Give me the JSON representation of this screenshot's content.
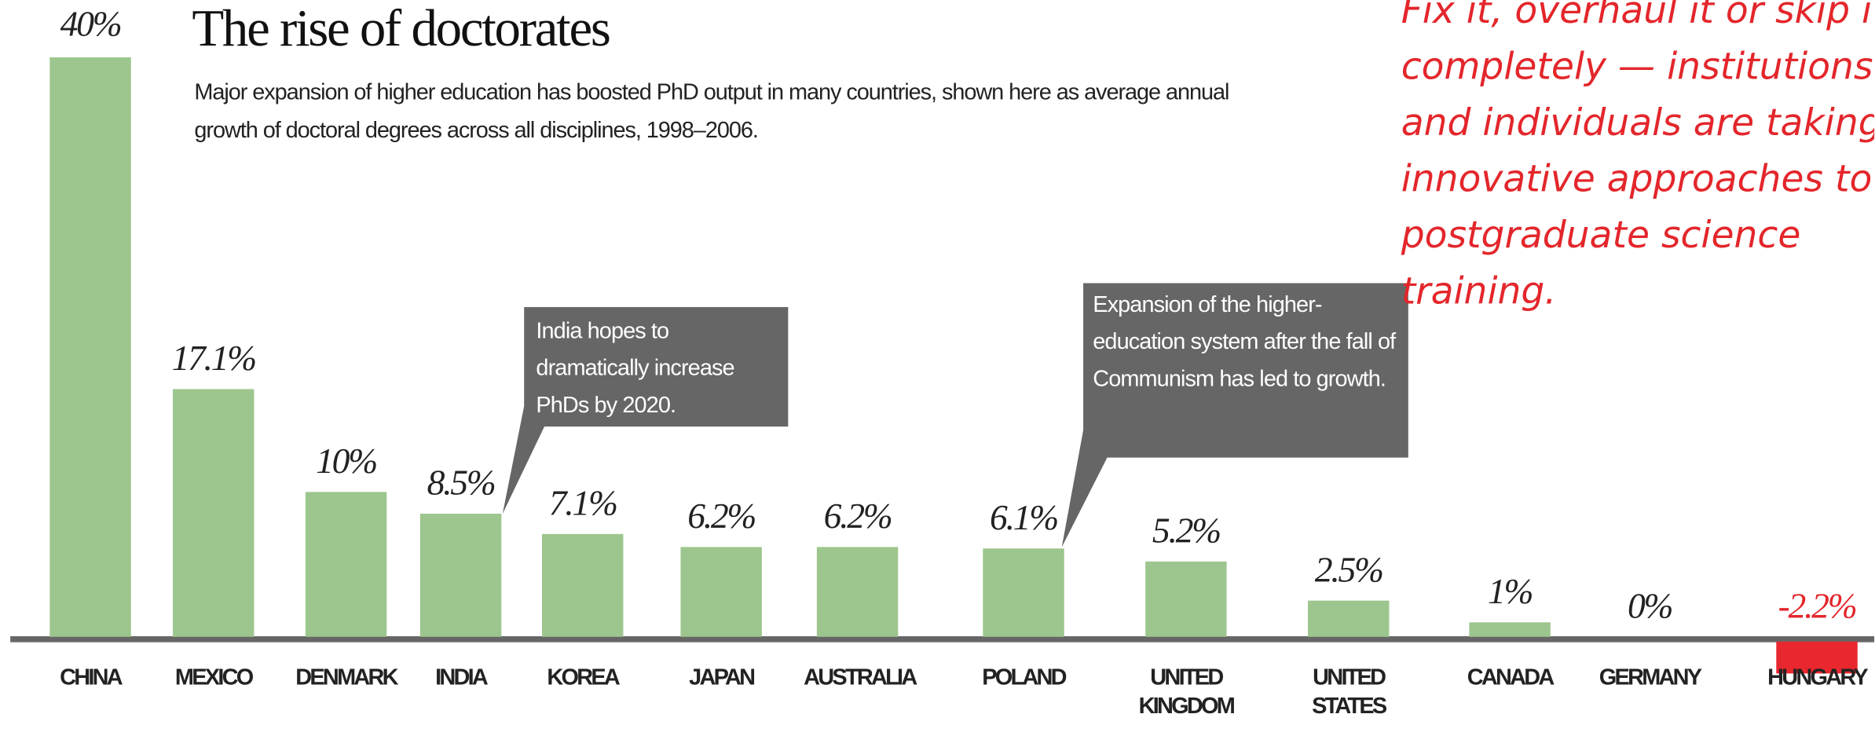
{
  "chart_data": {
    "type": "bar",
    "title": "The rise of doctorates",
    "subtitle": "Major expansion of higher education has boosted PhD output in many countries, shown here as average annual growth of doctoral degrees across all disciplines, 1998–2006.",
    "annotations": [
      "India hopes to dramatically increase PhDs by 2020.",
      "Expansion of the higher-education system after the fall of Communism has led to growth."
    ],
    "side_text": "Fix it, overhaul it or skip it completely — institutions and individuals are taking innovative approaches to postgraduate science training.",
    "categories": [
      "CHINA",
      "MEXICO",
      "DENMARK",
      "INDIA",
      "KOREA",
      "JAPAN",
      "AUSTRALIA",
      "POLAND",
      "UNITED KINGDOM",
      "UNITED STATES",
      "CANADA",
      "GERMANY",
      "HUNGARY"
    ],
    "values": [
      40,
      17.1,
      10,
      8.5,
      7.1,
      6.2,
      6.2,
      6.1,
      5.2,
      2.5,
      1,
      0,
      -2.2
    ],
    "value_labels": [
      "40%",
      "17.1%",
      "10%",
      "8.5%",
      "7.1%",
      "6.2%",
      "6.2%",
      "6.1%",
      "5.2%",
      "2.5%",
      "1%",
      "0%",
      "-2.2%"
    ],
    "color": "#9dc68e",
    "negative_color": "#e8272e"
  }
}
